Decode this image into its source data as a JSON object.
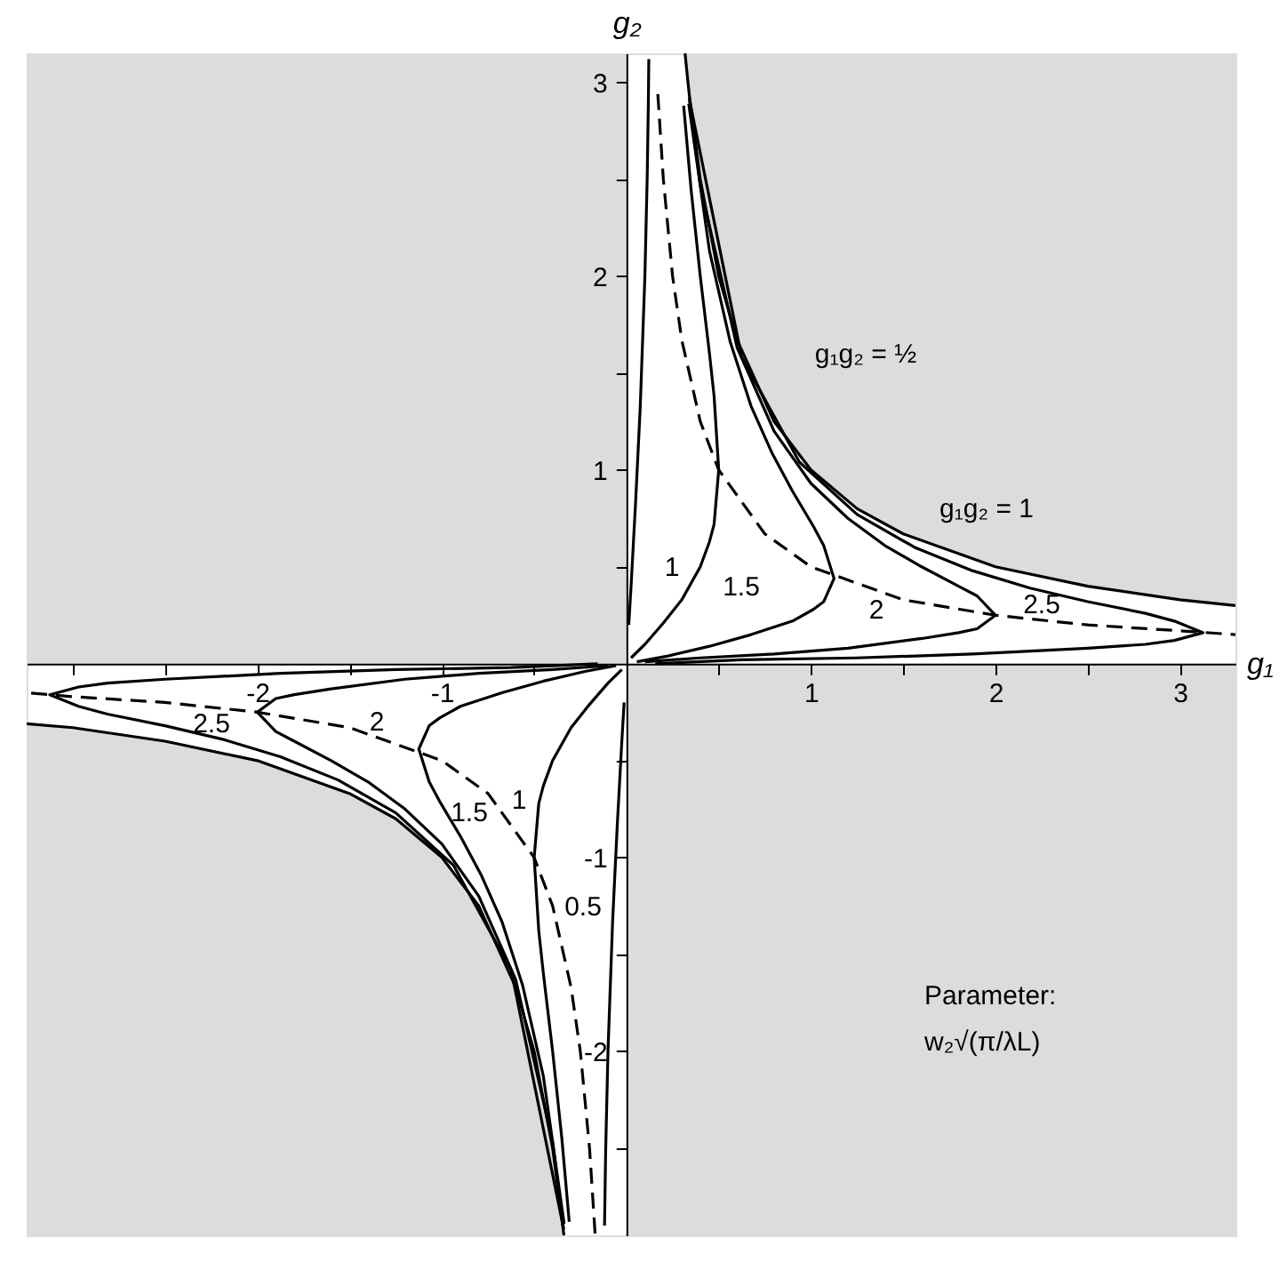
{
  "chart_data": {
    "type": "line",
    "xlabel": "g₁",
    "ylabel": "g₂",
    "xlim": [
      -3.25,
      3.3
    ],
    "ylim": [
      -2.95,
      3.15
    ],
    "xticks": [
      {
        "value": -3,
        "label": null
      },
      {
        "value": -2.5,
        "label": null
      },
      -2,
      {
        "value": -1.5,
        "label": null
      },
      -1,
      {
        "value": -0.5,
        "label": null
      },
      {
        "value": 0.5,
        "label": null
      },
      1,
      {
        "value": 1.5,
        "label": null
      },
      2,
      {
        "value": 2.5,
        "label": null
      },
      3
    ],
    "yticks": [
      {
        "value": -2.5,
        "label": null
      },
      -2,
      {
        "value": -1.5,
        "label": null
      },
      -1,
      {
        "value": -0.5,
        "label": null
      },
      {
        "value": 0.5,
        "label": null
      },
      1,
      {
        "value": 1.5,
        "label": null
      },
      2,
      {
        "value": 2.5,
        "label": null
      },
      3
    ],
    "series": [
      {
        "color": "#000000",
        "x": [
          0.3175,
          0.34,
          0.4,
          0.5,
          0.6,
          0.8,
          1,
          1.25,
          1.5,
          2,
          2.5,
          3,
          3.3
        ],
        "values": [
          3.15,
          2.94,
          2.5,
          2,
          1.67,
          1.25,
          1,
          0.8,
          0.67,
          0.5,
          0.4,
          0.33,
          0.3
        ]
      },
      {
        "color": "#000000",
        "x": [
          -3.25,
          -3,
          -2.5,
          -2,
          -1.5,
          -1.25,
          -1,
          -0.8,
          -0.6,
          -0.5,
          -0.4,
          -0.34,
          -0.339
        ],
        "values": [
          -0.31,
          -0.33,
          -0.4,
          -0.5,
          -0.67,
          -0.8,
          -1,
          -1.25,
          -1.67,
          -2,
          -2.5,
          -2.94,
          -2.95
        ]
      },
      {
        "color": "#000000",
        "line_style": "dashed",
        "x": [
          0.17,
          0.2,
          0.25,
          0.3,
          0.4,
          0.5,
          0.75,
          1,
          1.5,
          2,
          2.5,
          3,
          3.3
        ],
        "values": [
          2.94,
          2.5,
          2,
          1.67,
          1.25,
          1,
          0.67,
          0.5,
          0.33,
          0.25,
          0.2,
          0.17,
          0.15
        ]
      },
      {
        "color": "#000000",
        "line_style": "dashed",
        "x": [
          -0.17,
          -0.2,
          -0.25,
          -0.3,
          -0.4,
          -0.5,
          -0.75,
          -1,
          -1.5,
          -2,
          -2.5,
          -3,
          -3.25
        ],
        "values": [
          -2.94,
          -2.5,
          -2,
          -1.67,
          -1.25,
          -1,
          -0.67,
          -0.5,
          -0.33,
          -0.25,
          -0.2,
          -0.17,
          -0.15
        ]
      },
      {
        "color": "#000000",
        "x": [
          0.0125,
          0.025,
          0.05,
          0.075,
          0.1,
          0.1125,
          0.11875,
          0.12125
        ],
        "values": [
          0.2,
          0.4,
          0.84,
          1.33,
          2.0,
          2.51,
          2.9,
          3.12
        ]
      },
      {
        "color": "#000000",
        "x": [
          -0.0125,
          -0.025,
          -0.05,
          -0.075,
          -0.1,
          -0.1125,
          -0.11875
        ],
        "values": [
          -0.2,
          -0.4,
          -0.84,
          -1.33,
          -2.0,
          -2.51,
          -2.9
        ]
      },
      {
        "color": "#000000",
        "x": [
          0.025,
          0.1,
          0.2,
          0.3,
          0.4,
          0.45,
          0.475,
          0.5,
          0.475,
          0.45,
          0.4,
          0.35,
          0.31
        ],
        "values": [
          0.03,
          0.1,
          0.21,
          0.33,
          0.5,
          0.63,
          0.72,
          1,
          1.38,
          1.6,
          2.0,
          2.45,
          2.88
        ]
      },
      {
        "color": "#000000",
        "x": [
          -0.025,
          -0.1,
          -0.2,
          -0.3,
          -0.4,
          -0.45,
          -0.475,
          -0.5,
          -0.475,
          -0.45,
          -0.4,
          -0.35,
          -0.31
        ],
        "values": [
          -0.03,
          -0.1,
          -0.21,
          -0.33,
          -0.5,
          -0.63,
          -0.72,
          -1,
          -1.38,
          -1.6,
          -2.0,
          -2.45,
          -2.88
        ]
      },
      {
        "color": "#000000",
        "x": [
          0.05625,
          0.225,
          0.45,
          0.675,
          0.9,
          1.0125,
          1.06875,
          1.125,
          1.06875,
          1.0125,
          0.9,
          0.7875,
          0.675,
          0.5625,
          0.45,
          0.3375
        ],
        "values": [
          0.01,
          0.04,
          0.09,
          0.15,
          0.22,
          0.28,
          0.32,
          0.44,
          0.61,
          0.71,
          0.89,
          1.09,
          1.33,
          1.66,
          2.13,
          2.89
        ]
      },
      {
        "color": "#000000",
        "x": [
          -0.05625,
          -0.225,
          -0.45,
          -0.675,
          -0.9,
          -1.0125,
          -1.06875,
          -1.125,
          -1.06875,
          -1.0125,
          -0.9,
          -0.7875,
          -0.675,
          -0.5625,
          -0.45,
          -0.3375
        ],
        "values": [
          -0.01,
          -0.04,
          -0.09,
          -0.15,
          -0.22,
          -0.28,
          -0.32,
          -0.44,
          -0.61,
          -0.71,
          -0.89,
          -1.09,
          -1.33,
          -1.66,
          -2.13,
          -2.89
        ]
      },
      {
        "color": "#000000",
        "x": [
          0.1,
          0.4,
          0.8,
          1.2,
          1.6,
          1.8,
          1.9,
          2,
          1.9,
          1.8,
          1.6,
          1.4,
          1.2,
          1.0,
          0.8,
          0.6,
          0.4,
          0.34
        ],
        "values": [
          0.01,
          0.03,
          0.05,
          0.08,
          0.13,
          0.16,
          0.18,
          0.25,
          0.35,
          0.4,
          0.5,
          0.61,
          0.75,
          0.93,
          1.2,
          1.63,
          2.47,
          2.92
        ]
      },
      {
        "color": "#000000",
        "x": [
          -0.1,
          -0.4,
          -0.8,
          -1.2,
          -1.6,
          -1.8,
          -1.9,
          -2,
          -1.9,
          -1.8,
          -1.6,
          -1.4,
          -1.2,
          -1.0,
          -0.8,
          -0.6,
          -0.4,
          -0.34
        ],
        "values": [
          -0.01,
          -0.03,
          -0.05,
          -0.08,
          -0.13,
          -0.16,
          -0.18,
          -0.25,
          -0.35,
          -0.4,
          -0.5,
          -0.61,
          -0.75,
          -0.93,
          -1.2,
          -1.63,
          -2.47,
          -2.92
        ]
      },
      {
        "color": "#000000",
        "x": [
          0.15625,
          0.625,
          1.25,
          1.875,
          2.5,
          2.8125,
          2.96875,
          3.125,
          2.96875,
          2.8125,
          2.5,
          2.1875,
          1.875,
          1.5625,
          1.25,
          0.9375,
          0.625,
          0.34375
        ],
        "values": [
          0.0,
          0.02,
          0.03,
          0.05,
          0.08,
          0.1,
          0.12,
          0.16,
          0.22,
          0.26,
          0.32,
          0.39,
          0.48,
          0.6,
          0.77,
          1.04,
          1.58,
          2.9
        ]
      },
      {
        "color": "#000000",
        "x": [
          -0.15625,
          -0.625,
          -1.25,
          -1.875,
          -2.5,
          -2.8125,
          -2.96875,
          -3.125,
          -2.96875,
          -2.8125,
          -2.5,
          -2.1875,
          -1.875,
          -1.5625,
          -1.25,
          -0.9375,
          -0.625,
          -0.34375
        ],
        "values": [
          0.0,
          -0.02,
          -0.03,
          -0.05,
          -0.08,
          -0.1,
          -0.12,
          -0.16,
          -0.22,
          -0.26,
          -0.32,
          -0.39,
          -0.48,
          -0.6,
          -0.77,
          -1.04,
          -1.58,
          -2.9
        ]
      }
    ],
    "annotations": [
      "g₁g₂ = ½",
      "g₁g₂ = 1",
      "1",
      "1.5",
      "2",
      "2.5",
      "2.5",
      "2",
      "1.5",
      "1",
      "0.5",
      "Parameter:",
      "w₂√(π/λL)"
    ]
  }
}
